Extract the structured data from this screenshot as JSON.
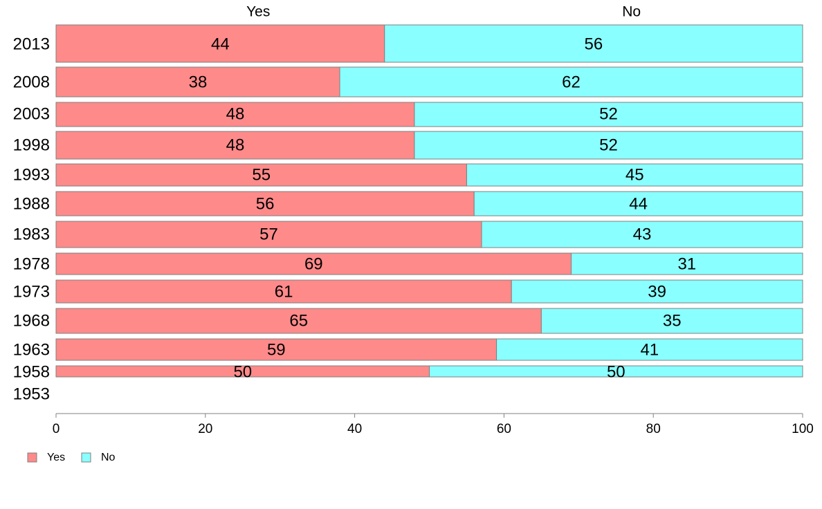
{
  "chart_data": {
    "type": "bar",
    "orientation": "horizontal",
    "stacked": true,
    "categories": [
      "2013",
      "2008",
      "2003",
      "1998",
      "1993",
      "1988",
      "1983",
      "1978",
      "1973",
      "1968",
      "1963",
      "1958",
      "1953"
    ],
    "series": [
      {
        "name": "Yes",
        "color": "#ff8a8a",
        "values": [
          44,
          38,
          48,
          48,
          55,
          56,
          57,
          69,
          61,
          65,
          59,
          50,
          null
        ],
        "labels": [
          "44",
          "38",
          "48",
          "48",
          "55",
          "56",
          "57",
          "69",
          "61",
          "65",
          "59",
          "50",
          ""
        ]
      },
      {
        "name": "No",
        "color": "#8affff",
        "values": [
          56,
          62,
          52,
          52,
          45,
          44,
          43,
          31,
          39,
          35,
          41,
          50,
          null
        ],
        "labels": [
          "56",
          "62",
          "52",
          "52",
          "45",
          "44",
          "43",
          "31",
          "39",
          "35",
          "41",
          "50",
          ""
        ]
      }
    ],
    "column_headers": [
      "Yes",
      "No"
    ],
    "xlim": [
      0,
      100
    ],
    "xticks": [
      0,
      20,
      40,
      60,
      80,
      100
    ],
    "xtick_labels": [
      "0",
      "20",
      "40",
      "60",
      "80",
      "100"
    ],
    "legend": {
      "position": "bottom-left",
      "entries": [
        "Yes",
        "No"
      ]
    },
    "grid": false,
    "title": "",
    "xlabel": "",
    "ylabel": ""
  }
}
